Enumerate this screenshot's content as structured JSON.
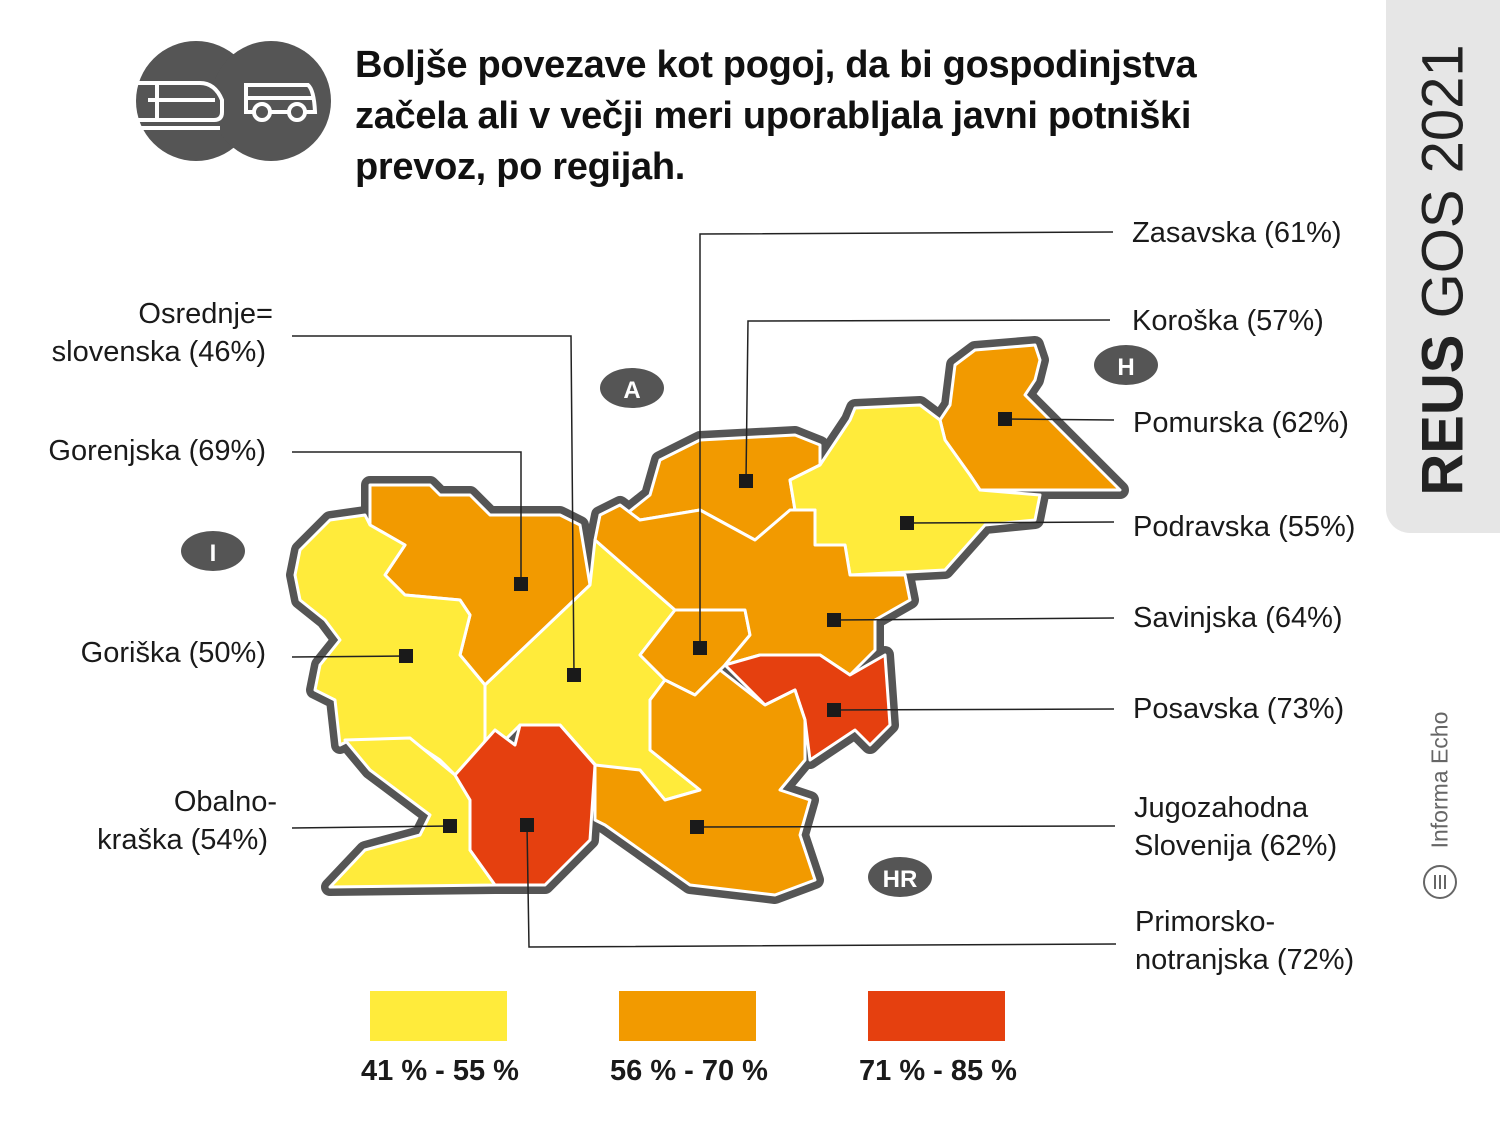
{
  "title": "Boljše povezave kot pogoj, da bi gospodinjstva začela ali v večji meri uporabljala javni potniški prevoz, po regijah.",
  "header_icons": [
    "train-icon",
    "bus-icon"
  ],
  "side_tab": {
    "brand_bold": "REUS",
    "brand_rest": " GOS 2021"
  },
  "publisher": "Informa Echo",
  "countries": [
    "A",
    "H",
    "I",
    "HR"
  ],
  "colors": {
    "low": "#ffeb3b",
    "mid": "#f29a00",
    "high": "#e5400f",
    "outline": "#555555",
    "badge": "#555555"
  },
  "regions": [
    {
      "name": "Gorenjska",
      "label": "Gorenjska (69%)",
      "value": 69
    },
    {
      "name": "Osrednjeslovenska",
      "label1": "Osrednje=",
      "label2": "slovenska (46%)",
      "value": 46
    },
    {
      "name": "Goriška",
      "label": "Goriška (50%)",
      "value": 50
    },
    {
      "name": "Obalno-kraška",
      "label1": "Obalno-",
      "label2": "kraška (54%)",
      "value": 54
    },
    {
      "name": "Zasavska",
      "label": "Zasavska (61%)",
      "value": 61
    },
    {
      "name": "Koroška",
      "label": "Koroška (57%)",
      "value": 57
    },
    {
      "name": "Pomurska",
      "label": "Pomurska (62%)",
      "value": 62
    },
    {
      "name": "Podravska",
      "label": "Podravska (55%)",
      "value": 55
    },
    {
      "name": "Savinjska",
      "label": "Savinjska (64%)",
      "value": 64
    },
    {
      "name": "Posavska",
      "label": "Posavska (73%)",
      "value": 73
    },
    {
      "name": "Jugozahodna Slovenija",
      "label1": "Jugozahodna",
      "label2": "Slovenija (62%)",
      "value": 62
    },
    {
      "name": "Primorsko-notranjska",
      "label1": "Primorsko-",
      "label2": "notranjska (72%)",
      "value": 72
    }
  ],
  "legend": [
    {
      "label": "41 % - 55 %",
      "color": "#ffeb3b"
    },
    {
      "label": "56 % - 70 %",
      "color": "#f29a00"
    },
    {
      "label": "71 % - 85 %",
      "color": "#e5400f"
    }
  ]
}
